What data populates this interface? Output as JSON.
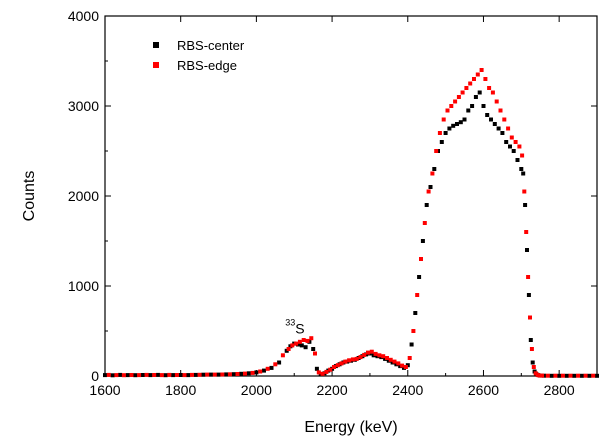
{
  "chart_data": {
    "type": "scatter",
    "title": "",
    "xlabel": "Energy (keV)",
    "ylabel": "Counts",
    "xlim": [
      1600,
      2900
    ],
    "ylim": [
      0,
      4000
    ],
    "xticks": [
      1600,
      1800,
      2000,
      2200,
      2400,
      2600,
      2800
    ],
    "yticks": [
      0,
      1000,
      2000,
      3000,
      4000
    ],
    "grid": false,
    "legend_position": "top-left",
    "annotations": [
      {
        "text_sup": "33",
        "text_main": "S",
        "x": 2108,
        "y": 470
      }
    ],
    "series": [
      {
        "name": "RBS-center",
        "color": "#000000",
        "marker": "square",
        "x": [
          1600,
          1620,
          1640,
          1660,
          1680,
          1700,
          1720,
          1740,
          1760,
          1780,
          1800,
          1820,
          1840,
          1860,
          1880,
          1900,
          1920,
          1940,
          1960,
          1980,
          2000,
          2020,
          2040,
          2060,
          2080,
          2090,
          2100,
          2110,
          2120,
          2130,
          2140,
          2150,
          2160,
          2170,
          2180,
          2190,
          2200,
          2210,
          2220,
          2230,
          2240,
          2250,
          2260,
          2270,
          2280,
          2290,
          2300,
          2310,
          2320,
          2330,
          2340,
          2350,
          2360,
          2370,
          2380,
          2390,
          2400,
          2410,
          2420,
          2430,
          2440,
          2450,
          2460,
          2470,
          2480,
          2490,
          2500,
          2510,
          2520,
          2530,
          2540,
          2550,
          2560,
          2570,
          2580,
          2590,
          2600,
          2610,
          2620,
          2630,
          2640,
          2650,
          2660,
          2670,
          2680,
          2690,
          2700,
          2705,
          2710,
          2715,
          2720,
          2725,
          2730,
          2735,
          2740,
          2745,
          2750,
          2760,
          2780,
          2800,
          2820,
          2840,
          2860,
          2880,
          2900
        ],
        "values": [
          10,
          8,
          12,
          10,
          9,
          11,
          10,
          12,
          9,
          10,
          11,
          10,
          12,
          14,
          15,
          16,
          18,
          20,
          25,
          30,
          40,
          60,
          90,
          150,
          280,
          330,
          360,
          350,
          340,
          320,
          380,
          300,
          80,
          20,
          30,
          60,
          80,
          110,
          130,
          150,
          160,
          170,
          180,
          200,
          220,
          240,
          250,
          230,
          220,
          210,
          190,
          170,
          150,
          130,
          110,
          90,
          120,
          350,
          700,
          1100,
          1500,
          1900,
          2100,
          2300,
          2500,
          2600,
          2700,
          2750,
          2780,
          2800,
          2820,
          2850,
          2950,
          3000,
          3100,
          3150,
          3000,
          2900,
          2850,
          2800,
          2750,
          2700,
          2600,
          2550,
          2500,
          2400,
          2300,
          2250,
          1900,
          1400,
          900,
          400,
          150,
          50,
          20,
          10,
          5,
          3,
          2,
          2,
          2,
          2,
          2,
          2,
          2
        ]
      },
      {
        "name": "RBS-edge",
        "color": "#ff0000",
        "marker": "square",
        "x": [
          1610,
          1630,
          1650,
          1670,
          1690,
          1710,
          1730,
          1750,
          1770,
          1790,
          1810,
          1830,
          1850,
          1870,
          1890,
          1910,
          1930,
          1950,
          1970,
          1990,
          2010,
          2030,
          2050,
          2070,
          2085,
          2095,
          2105,
          2115,
          2125,
          2135,
          2145,
          2155,
          2165,
          2175,
          2185,
          2195,
          2205,
          2215,
          2225,
          2235,
          2245,
          2255,
          2265,
          2275,
          2285,
          2295,
          2305,
          2315,
          2325,
          2335,
          2345,
          2355,
          2365,
          2375,
          2385,
          2395,
          2405,
          2415,
          2425,
          2435,
          2445,
          2455,
          2465,
          2475,
          2485,
          2495,
          2505,
          2515,
          2525,
          2535,
          2545,
          2555,
          2565,
          2575,
          2585,
          2595,
          2605,
          2615,
          2625,
          2635,
          2645,
          2655,
          2665,
          2675,
          2685,
          2695,
          2702,
          2708,
          2713,
          2718,
          2723,
          2728,
          2733,
          2738,
          2743,
          2748,
          2755,
          2770,
          2790,
          2810,
          2830,
          2850,
          2870,
          2890
        ],
        "values": [
          12,
          10,
          9,
          11,
          10,
          12,
          11,
          10,
          12,
          11,
          10,
          12,
          13,
          15,
          16,
          17,
          19,
          22,
          27,
          35,
          50,
          80,
          130,
          230,
          300,
          340,
          360,
          380,
          400,
          390,
          420,
          250,
          40,
          25,
          45,
          70,
          100,
          120,
          140,
          160,
          175,
          185,
          190,
          210,
          235,
          260,
          270,
          245,
          230,
          220,
          200,
          180,
          160,
          140,
          115,
          100,
          200,
          500,
          900,
          1300,
          1700,
          2050,
          2250,
          2500,
          2700,
          2850,
          2950,
          3000,
          3050,
          3100,
          3150,
          3200,
          3250,
          3300,
          3350,
          3400,
          3300,
          3200,
          3150,
          3050,
          2950,
          2850,
          2750,
          2650,
          2600,
          2550,
          2450,
          2050,
          1600,
          1100,
          650,
          300,
          100,
          30,
          12,
          6,
          4,
          3,
          3,
          3,
          3,
          3,
          3,
          3
        ]
      }
    ]
  }
}
